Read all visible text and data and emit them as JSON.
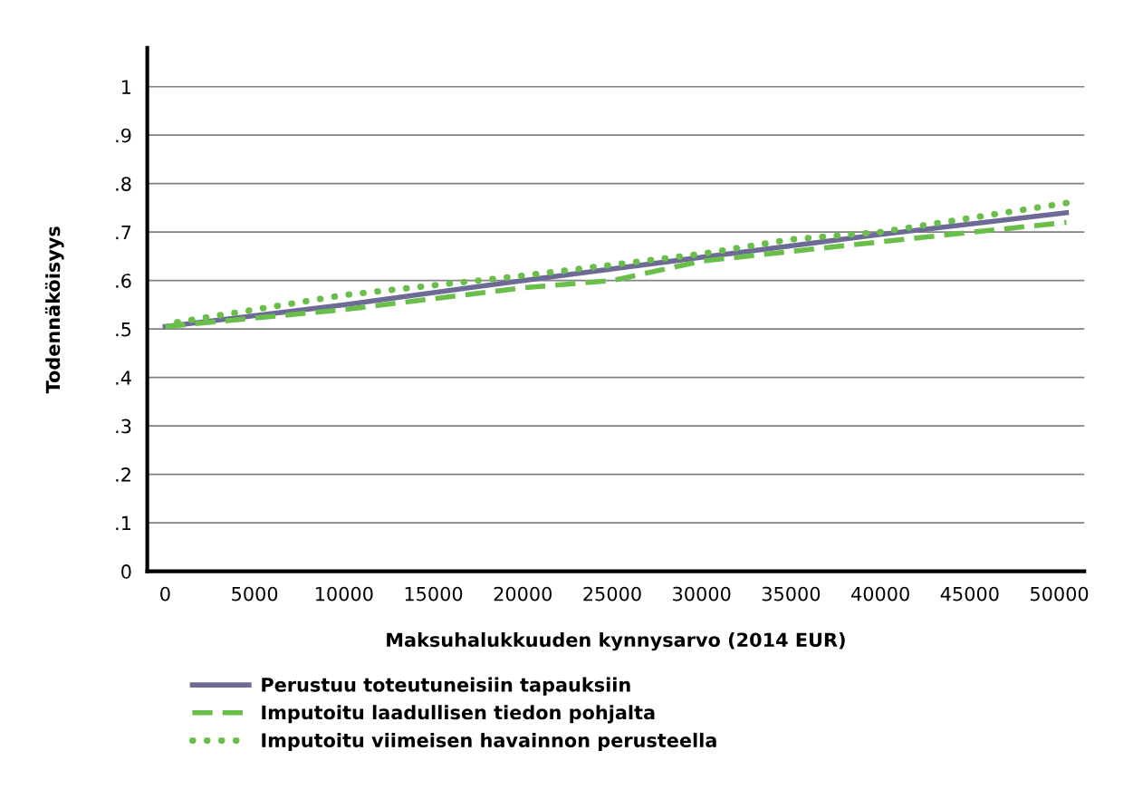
{
  "chart_data": {
    "type": "line",
    "xlabel": "Maksuhalukkuuden kynnysarvo (2014 EUR)",
    "ylabel": "Todennäköisyys",
    "xlim": [
      -1000,
      51400
    ],
    "ylim": [
      0,
      1.08
    ],
    "xticks": [
      0,
      5000,
      10000,
      15000,
      20000,
      25000,
      30000,
      35000,
      40000,
      45000,
      50000
    ],
    "yticks": [
      0,
      {
        "value": 0.1,
        "label": ".1"
      },
      {
        "value": 0.2,
        "label": ".2"
      },
      {
        "value": 0.3,
        "label": ".3"
      },
      {
        "value": 0.4,
        "label": ".4"
      },
      {
        "value": 0.5,
        "label": ".5"
      },
      {
        "value": 0.6,
        "label": ".6"
      },
      {
        "value": 0.7,
        "label": ".7"
      },
      {
        "value": 0.8,
        "label": ".8"
      },
      {
        "value": 0.9,
        "label": ".9"
      },
      1
    ],
    "grid": "y",
    "legend": "bottom",
    "marker": "none",
    "series": [
      {
        "name": "Perustuu toteutuneisiin tapauksiin",
        "color": "#6e6a96",
        "line_style": "solid",
        "x": [
          0,
          10000,
          20000,
          30000,
          40000,
          50400
        ],
        "values": [
          0.505,
          0.55,
          0.6,
          0.648,
          0.695,
          0.74
        ]
      },
      {
        "name": "Imputoitu laadullisen tiedon pohjalta",
        "color": "#6abf4b",
        "line_style": "dashed",
        "x": [
          0,
          10000,
          20000,
          25000,
          30000,
          40000,
          50400
        ],
        "values": [
          0.505,
          0.54,
          0.585,
          0.6,
          0.64,
          0.68,
          0.72
        ]
      },
      {
        "name": "Imputoitu viimeisen havainnon perusteella",
        "color": "#6abf4b",
        "line_style": "dotted",
        "x": [
          0,
          10000,
          20000,
          30000,
          35000,
          40000,
          50400
        ],
        "values": [
          0.51,
          0.57,
          0.61,
          0.655,
          0.685,
          0.7,
          0.76
        ]
      }
    ]
  }
}
